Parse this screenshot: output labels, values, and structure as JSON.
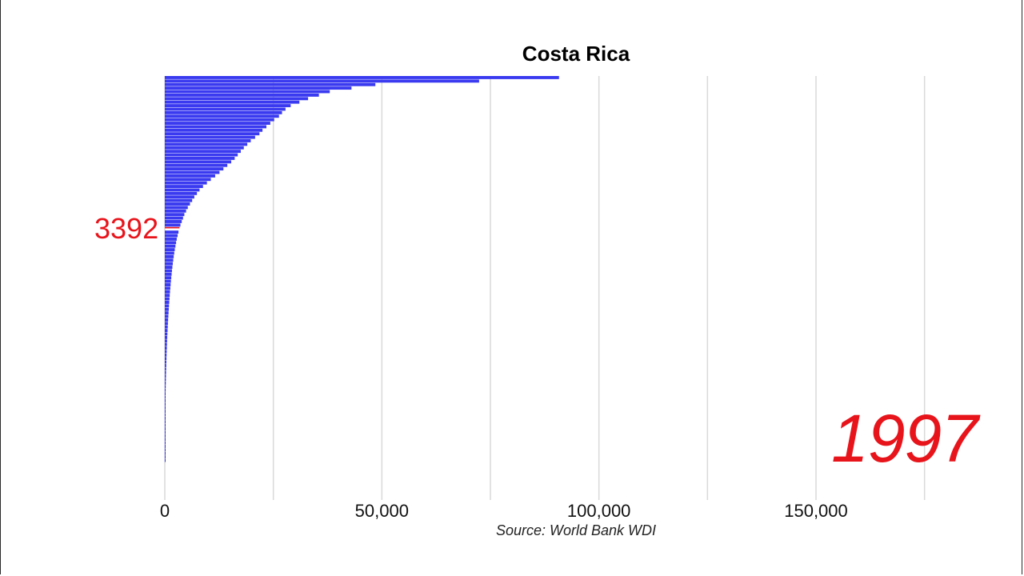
{
  "chart_data": {
    "type": "bar",
    "orientation": "horizontal",
    "title": "Costa Rica",
    "year": "1997",
    "highlight": {
      "label": "3392",
      "value": 3392,
      "color": "#e8141b"
    },
    "bar_color": "#3a3af0",
    "source": "Source: World Bank WDI",
    "xlim": [
      0,
      180000
    ],
    "xticks": [
      {
        "value": 0,
        "label": "0"
      },
      {
        "value": 50000,
        "label": "50,000"
      },
      {
        "value": 100000,
        "label": "100,000"
      },
      {
        "value": 150000,
        "label": "150,000"
      }
    ],
    "grid": true,
    "values": [
      90800,
      72400,
      48500,
      43000,
      38000,
      35500,
      33000,
      31000,
      29000,
      27800,
      27000,
      26300,
      25200,
      24300,
      23400,
      22500,
      21800,
      20800,
      19800,
      19000,
      18200,
      17500,
      16800,
      16100,
      15300,
      14400,
      13500,
      12600,
      11600,
      10600,
      9700,
      8800,
      8000,
      7400,
      6800,
      6300,
      5800,
      5300,
      4900,
      4500,
      4200,
      3900,
      3600,
      3392,
      3150,
      2950,
      2750,
      2600,
      2450,
      2300,
      2170,
      2050,
      1940,
      1840,
      1740,
      1650,
      1570,
      1490,
      1410,
      1340,
      1270,
      1200,
      1140,
      1080,
      1020,
      960,
      910,
      860,
      810,
      760,
      720,
      680,
      640,
      600,
      565,
      530,
      500,
      470,
      440,
      410,
      385,
      360,
      335,
      310,
      290,
      270,
      250,
      230,
      212,
      195,
      180,
      165,
      150,
      138,
      126,
      115,
      105,
      95,
      86,
      78,
      70,
      63,
      56,
      50,
      44,
      39,
      34,
      30,
      26,
      22
    ]
  }
}
